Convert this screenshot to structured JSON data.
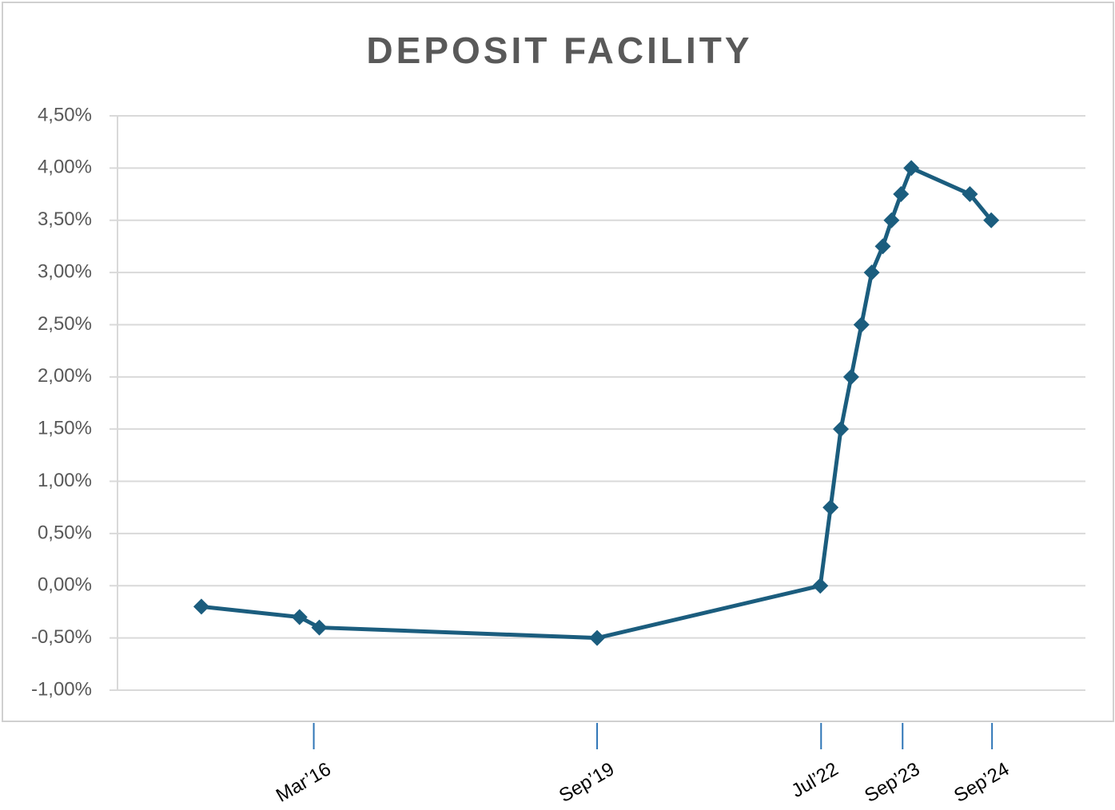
{
  "chart_data": {
    "type": "line",
    "title": "DEPOSIT FACILITY",
    "x": [
      2014.7,
      2015.94,
      2016.19,
      2019.7,
      2022.52,
      2022.65,
      2022.78,
      2022.91,
      2023.04,
      2023.17,
      2023.31,
      2023.42,
      2023.54,
      2023.67,
      2024.41,
      2024.68
    ],
    "series": [
      {
        "color": "#1b5d7e",
        "values": [
          -0.2,
          -0.3,
          -0.4,
          -0.5,
          0,
          0.75,
          1.5,
          2.0,
          2.5,
          3.0,
          3.25,
          3.5,
          3.75,
          4.0,
          3.75,
          3.5
        ]
      }
    ],
    "xlim": [
      2013.64,
      2025.87
    ],
    "xticks": [
      {
        "value": 2016.12,
        "label": "Mar’16"
      },
      {
        "value": 2019.7,
        "label": "Sep’19"
      },
      {
        "value": 2022.53,
        "label": "Jul’22"
      },
      {
        "value": 2023.56,
        "label": "Sep’23"
      },
      {
        "value": 2024.69,
        "label": "Sep’24"
      }
    ],
    "ylim": [
      -1,
      4.5
    ],
    "yticks": [
      {
        "value": -1,
        "label": "-1,00%"
      },
      {
        "value": -0.5,
        "label": "-0,50%"
      },
      {
        "value": 0,
        "label": "0,00%"
      },
      {
        "value": 0.5,
        "label": "0,50%"
      },
      {
        "value": 1,
        "label": "1,00%"
      },
      {
        "value": 1.5,
        "label": "1,50%"
      },
      {
        "value": 2,
        "label": "2,00%"
      },
      {
        "value": 2.5,
        "label": "2,50%"
      },
      {
        "value": 3,
        "label": "3,00%"
      },
      {
        "value": 3.5,
        "label": "3,50%"
      },
      {
        "value": 4,
        "label": "4,00%"
      },
      {
        "value": 4.5,
        "label": "4,50%"
      }
    ],
    "grid": true
  }
}
